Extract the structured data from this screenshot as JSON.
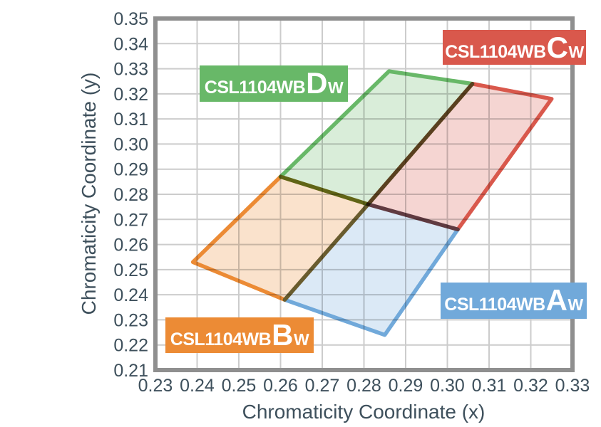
{
  "chart_data": {
    "type": "area",
    "title": "",
    "xlabel": "Chromaticity Coordinate (x)",
    "ylabel": "Chromaticity Coordinate (y)",
    "xlim": [
      0.23,
      0.33
    ],
    "ylim": [
      0.21,
      0.35
    ],
    "x_ticks": [
      "0.23",
      "0.24",
      "0.25",
      "0.26",
      "0.27",
      "0.28",
      "0.29",
      "0.30",
      "0.31",
      "0.32",
      "0.33"
    ],
    "y_ticks": [
      "0.21",
      "0.22",
      "0.23",
      "0.24",
      "0.25",
      "0.26",
      "0.27",
      "0.28",
      "0.29",
      "0.30",
      "0.31",
      "0.32",
      "0.33",
      "0.34",
      "0.35"
    ],
    "grid": true,
    "legend_position": "corner-callout-boxes",
    "colors": {
      "grid": "#cccccc",
      "plot_border": "#8f8f8f",
      "axis_text": "#3e505c",
      "background": "#ffffff"
    },
    "regions": [
      {
        "name": "CSL1104WBAW",
        "label_prefix": "CSL1104WB",
        "label_letter": "A",
        "label_sub": "W",
        "color": "#71A9DA",
        "fill_opacity": 0.25,
        "vertices": [
          [
            0.261,
            0.238
          ],
          [
            0.281,
            0.276
          ],
          [
            0.3025,
            0.266
          ],
          [
            0.285,
            0.224
          ]
        ]
      },
      {
        "name": "CSL1104WBBW",
        "label_prefix": "CSL1104WB",
        "label_letter": "B",
        "label_sub": "W",
        "color": "#EC8B35",
        "fill_opacity": 0.25,
        "vertices": [
          [
            0.239,
            0.253
          ],
          [
            0.26,
            0.287
          ],
          [
            0.281,
            0.276
          ],
          [
            0.261,
            0.238
          ]
        ]
      },
      {
        "name": "CSL1104WBDW",
        "label_prefix": "CSL1104WB",
        "label_letter": "D",
        "label_sub": "W",
        "color": "#68B868",
        "fill_opacity": 0.25,
        "vertices": [
          [
            0.26,
            0.287
          ],
          [
            0.286,
            0.329
          ],
          [
            0.306,
            0.324
          ],
          [
            0.281,
            0.276
          ]
        ]
      },
      {
        "name": "CSL1104WBCW",
        "label_prefix": "CSL1104WB",
        "label_letter": "C",
        "label_sub": "W",
        "color": "#D9584C",
        "fill_opacity": 0.25,
        "vertices": [
          [
            0.281,
            0.276
          ],
          [
            0.306,
            0.324
          ],
          [
            0.325,
            0.318
          ],
          [
            0.3025,
            0.266
          ]
        ]
      }
    ]
  }
}
